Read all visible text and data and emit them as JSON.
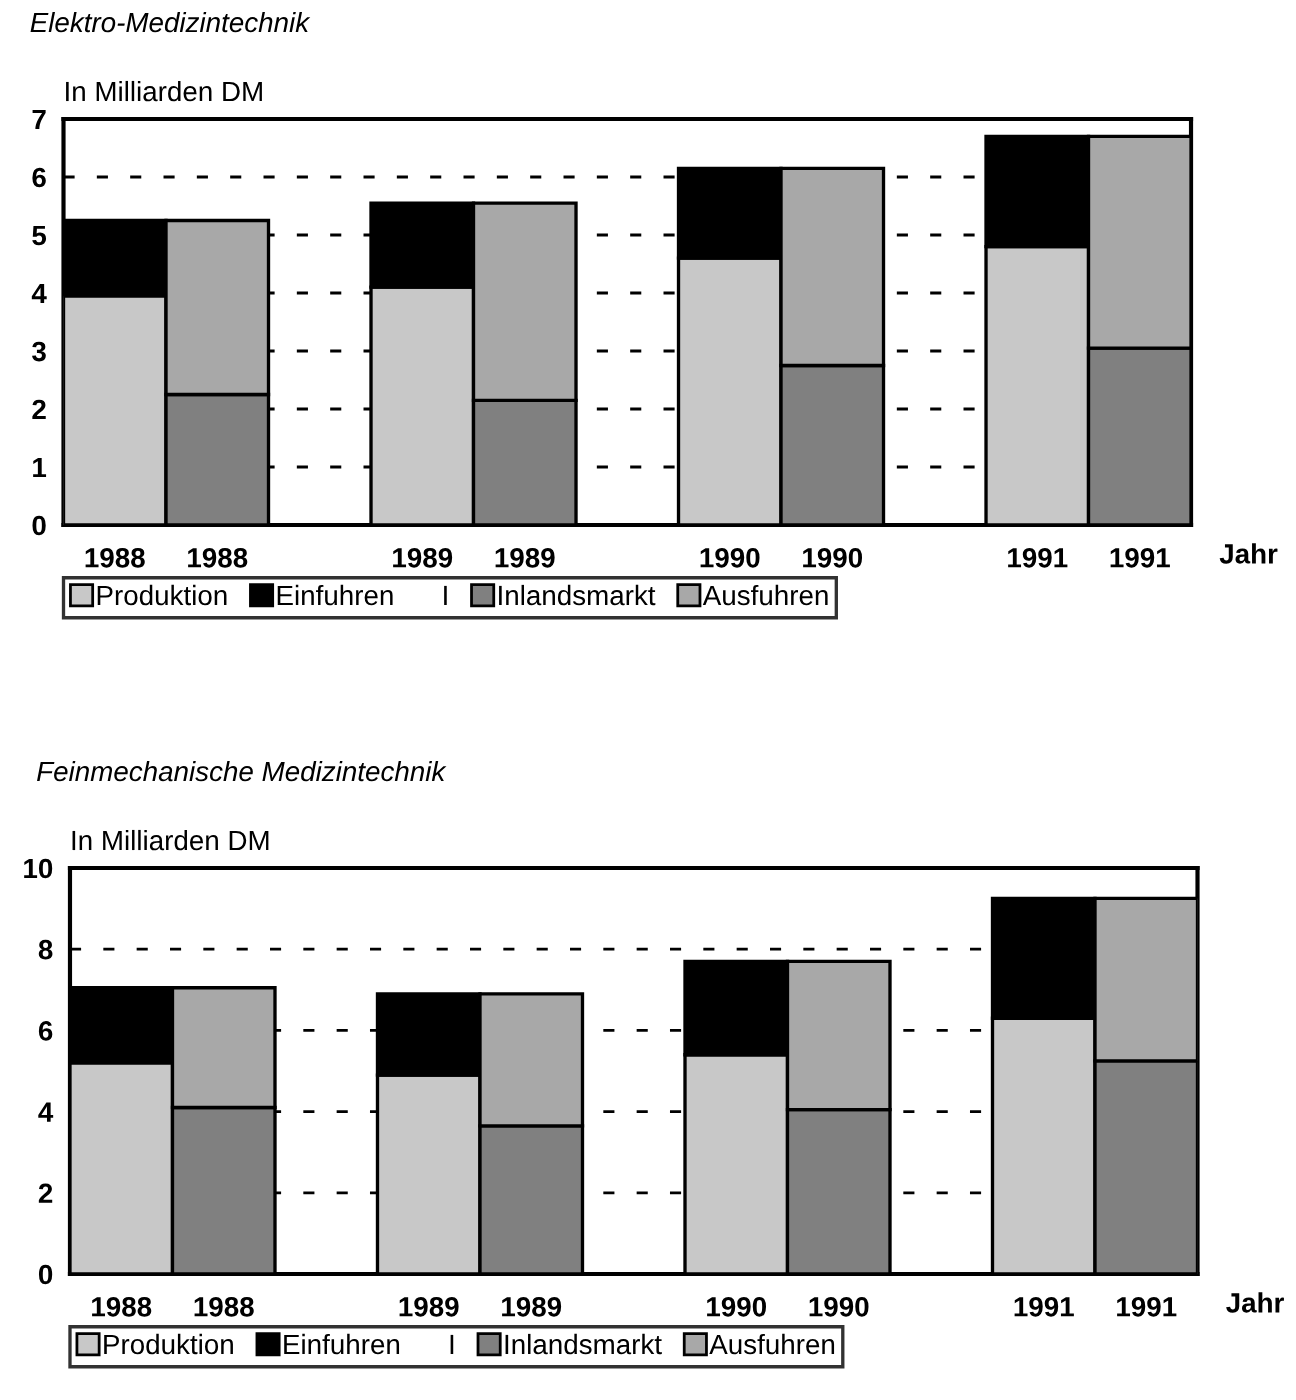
{
  "chart_data": [
    {
      "type": "bar",
      "title": "Elektro-Medizintechnik",
      "ylabel": "In Milliarden DM",
      "xlabel": "Jahr",
      "stacked": true,
      "categories": [
        "1988",
        "1988",
        null,
        "1989",
        "1989",
        null,
        "1990",
        "1990",
        null,
        "1991",
        "1991"
      ],
      "series": [
        {
          "name": "Produktion",
          "color": "#c8c8c8",
          "values": [
            3.95,
            null,
            null,
            4.1,
            null,
            null,
            4.6,
            null,
            null,
            4.8,
            null
          ]
        },
        {
          "name": "Einfuhren",
          "color": "#000000",
          "values": [
            1.3,
            null,
            null,
            1.45,
            null,
            null,
            1.55,
            null,
            null,
            1.9,
            null
          ]
        },
        {
          "name": "Inlandsmarkt",
          "color": "#808080",
          "values": [
            null,
            2.25,
            null,
            null,
            2.15,
            null,
            null,
            2.75,
            null,
            null,
            3.05
          ]
        },
        {
          "name": "Ausfuhren",
          "color": "#a8a8a8",
          "values": [
            null,
            3.0,
            null,
            null,
            3.4,
            null,
            null,
            3.4,
            null,
            null,
            3.65
          ]
        }
      ],
      "ylim": [
        0,
        7
      ],
      "yticks": [
        0,
        1,
        2,
        3,
        4,
        5,
        6,
        7
      ],
      "grid": "y",
      "legend": "bottom left",
      "annotations": [
        "I"
      ]
    },
    {
      "type": "bar",
      "title": "Feinmechanische Medizintechnik",
      "ylabel": "In Milliarden DM",
      "xlabel": "Jahr",
      "stacked": true,
      "categories": [
        "1988",
        "1988",
        null,
        "1989",
        "1989",
        null,
        "1990",
        "1990",
        null,
        "1991",
        "1991"
      ],
      "series": [
        {
          "name": "Produktion",
          "color": "#c8c8c8",
          "values": [
            5.2,
            null,
            null,
            4.9,
            null,
            null,
            5.4,
            null,
            null,
            6.3,
            null
          ]
        },
        {
          "name": "Einfuhren",
          "color": "#000000",
          "values": [
            1.85,
            null,
            null,
            2.0,
            null,
            null,
            2.3,
            null,
            null,
            2.95,
            null
          ]
        },
        {
          "name": "Inlandsmarkt",
          "color": "#808080",
          "values": [
            null,
            4.1,
            null,
            null,
            3.65,
            null,
            null,
            4.05,
            null,
            null,
            5.25
          ]
        },
        {
          "name": "Ausfuhren",
          "color": "#a8a8a8",
          "values": [
            null,
            2.95,
            null,
            null,
            3.25,
            null,
            null,
            3.65,
            null,
            null,
            4.0
          ]
        }
      ],
      "ylim": [
        0,
        10
      ],
      "yticks": [
        0,
        2,
        4,
        6,
        8,
        10
      ],
      "grid": "y",
      "legend": "bottom left",
      "annotations": [
        "I"
      ]
    }
  ]
}
